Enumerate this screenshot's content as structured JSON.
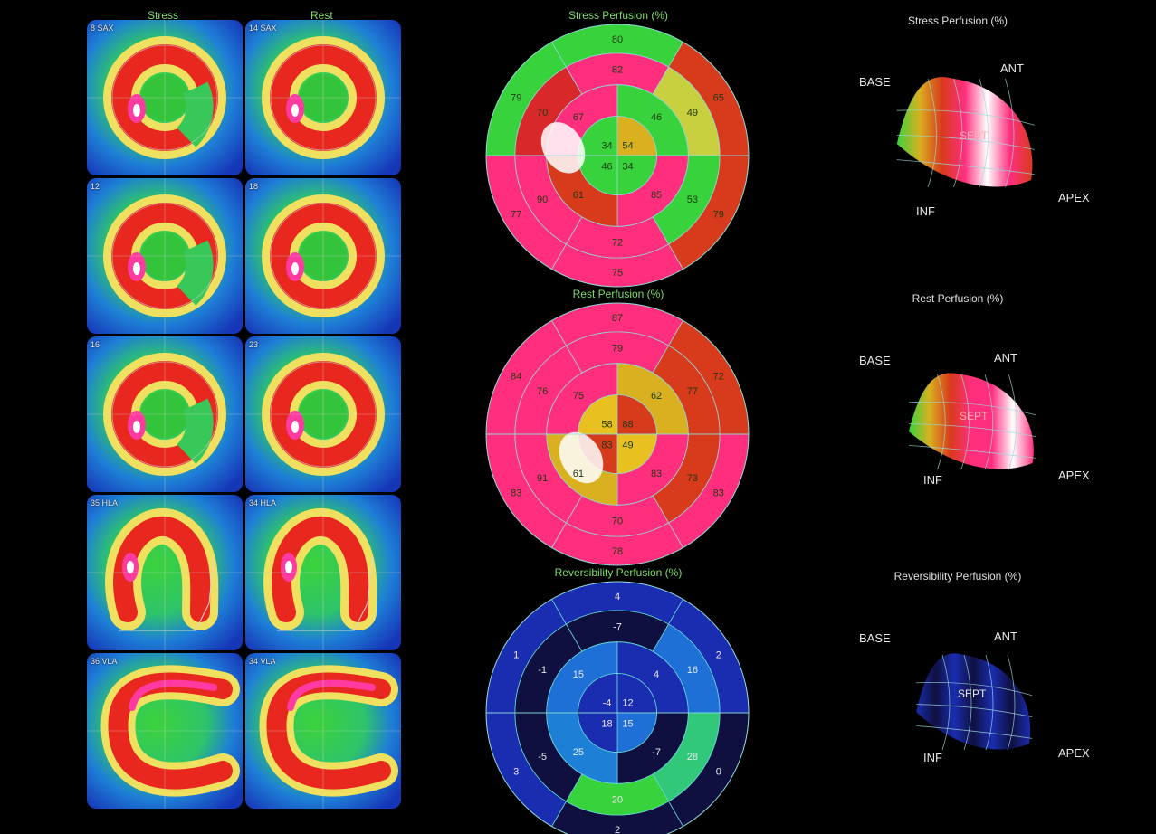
{
  "columns": {
    "stress": "Stress",
    "rest": "Rest"
  },
  "slices": [
    {
      "stress_label": "8 SAX",
      "rest_label": "14 SAX"
    },
    {
      "stress_label": "12",
      "rest_label": "18"
    },
    {
      "stress_label": "16",
      "rest_label": "23"
    },
    {
      "stress_label": "35 HLA",
      "rest_label": "34 HLA"
    },
    {
      "stress_label": "36 VLA",
      "rest_label": "34 VLA"
    }
  ],
  "polar_maps": [
    {
      "title": "Stress Perfusion (%)",
      "values": [
        79,
        80,
        65,
        79,
        75,
        77,
        70,
        82,
        49,
        53,
        72,
        90,
        67,
        46,
        85,
        61,
        34,
        54,
        34,
        46
      ]
    },
    {
      "title": "Rest Perfusion (%)",
      "values": [
        84,
        87,
        72,
        83,
        78,
        83,
        76,
        79,
        77,
        73,
        70,
        91,
        75,
        62,
        83,
        61,
        58,
        88,
        49,
        83
      ]
    },
    {
      "title": "Reversibility Perfusion (%)",
      "values": [
        1,
        4,
        2,
        0,
        2,
        3,
        -1,
        -7,
        16,
        28,
        20,
        -5,
        15,
        4,
        -7,
        25,
        -4,
        12,
        15,
        18
      ]
    }
  ],
  "views_3d": [
    {
      "title": "Stress Perfusion (%)",
      "base": "BASE",
      "ant": "ANT",
      "sept": "SEPT",
      "inf": "INF",
      "apex": "APEX"
    },
    {
      "title": "Rest Perfusion (%)",
      "base": "BASE",
      "ant": "ANT",
      "sept": "SEPT",
      "inf": "INF",
      "apex": "APEX"
    },
    {
      "title": "Reversibility Perfusion (%)",
      "base": "BASE",
      "ant": "ANT",
      "sept": "SEPT",
      "inf": "INF",
      "apex": "APEX"
    }
  ]
}
